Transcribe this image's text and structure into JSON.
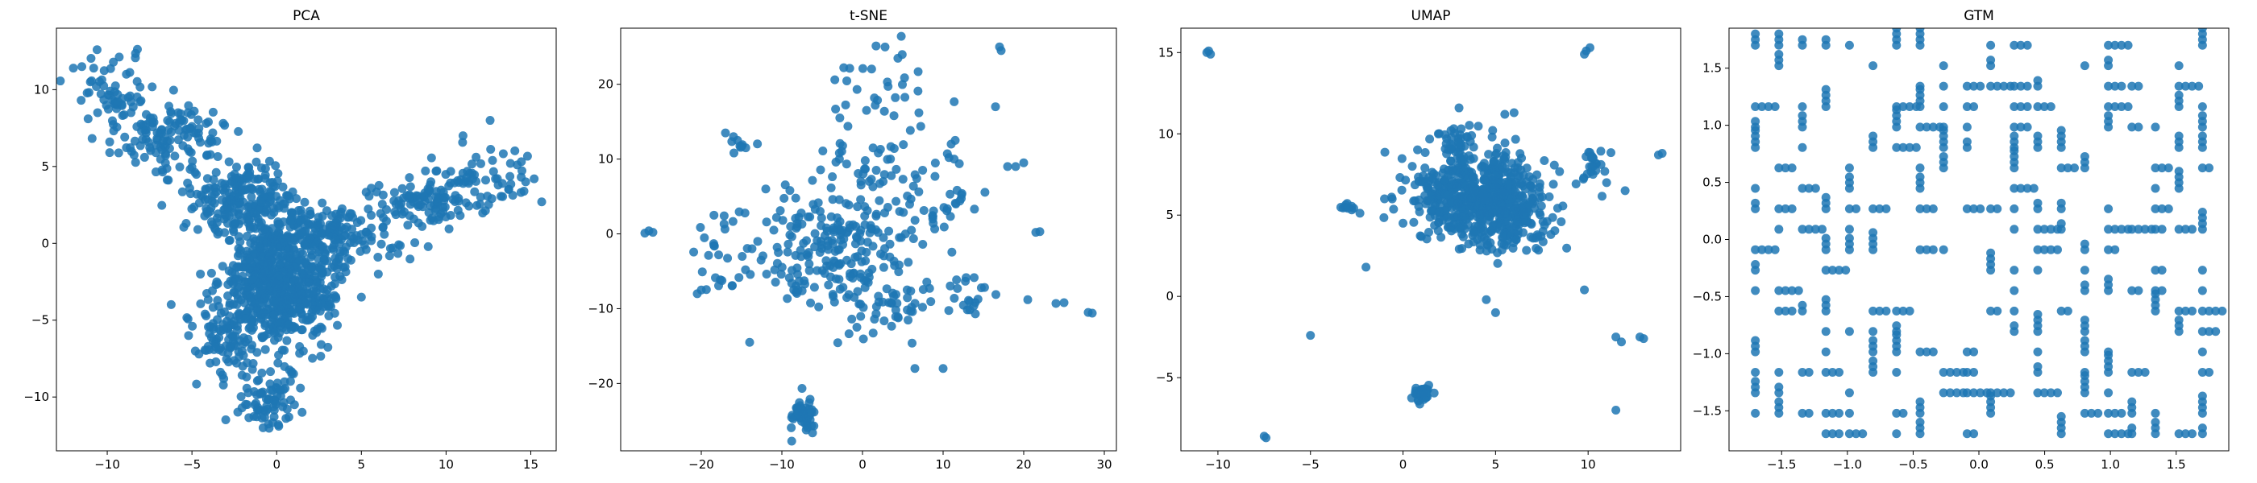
{
  "figure": {
    "background": "#ffffff",
    "marker_color": "#1f77b4",
    "marker_alpha": 0.85
  },
  "chart_data": [
    {
      "type": "scatter",
      "title": "PCA",
      "xlabel": "",
      "ylabel": "",
      "xlim": [
        -13,
        16.5
      ],
      "ylim": [
        -13.5,
        14
      ],
      "xticks": [
        -10,
        -5,
        0,
        5,
        10,
        15
      ],
      "yticks": [
        -10,
        -5,
        0,
        5,
        10
      ],
      "grid": false,
      "series": [
        {
          "color": "#1f77b4",
          "clusters": [
            {
              "cx": 0,
              "cy": -2.5,
              "sx": 1.6,
              "sy": 2.2,
              "n": 650
            },
            {
              "cx": -2,
              "cy": 3,
              "sx": 1.5,
              "sy": 1.2,
              "n": 200
            },
            {
              "cx": -6,
              "cy": 7,
              "sx": 1.5,
              "sy": 1.2,
              "n": 120
            },
            {
              "cx": -9.5,
              "cy": 9.5,
              "sx": 1.2,
              "sy": 1.2,
              "n": 60
            },
            {
              "cx": 3.5,
              "cy": 0.5,
              "sx": 1.8,
              "sy": 1.0,
              "n": 150
            },
            {
              "cx": 8.5,
              "cy": 3,
              "sx": 1.6,
              "sy": 1.0,
              "n": 110
            },
            {
              "cx": 13,
              "cy": 4,
              "sx": 1.4,
              "sy": 1.1,
              "n": 50
            },
            {
              "cx": -3,
              "cy": -6,
              "sx": 1.2,
              "sy": 1.2,
              "n": 80
            },
            {
              "cx": -0.5,
              "cy": -10.3,
              "sx": 0.8,
              "sy": 1.0,
              "n": 70
            },
            {
              "cx": 2.5,
              "cy": -3.5,
              "sx": 1.0,
              "sy": 1.0,
              "n": 40
            }
          ],
          "points": [
            [
              -11.5,
              11.5
            ],
            [
              -10.8,
              11.4
            ],
            [
              -10.6,
              12.6
            ],
            [
              -12.0,
              11.4
            ],
            [
              14.7,
              4.0
            ],
            [
              15.2,
              4.2
            ],
            [
              13.8,
              5.2
            ],
            [
              -0.8,
              -12.0
            ],
            [
              0.1,
              -11.8
            ],
            [
              1.5,
              -11.0
            ],
            [
              -2.0,
              -8.0
            ],
            [
              -5.2,
              -6.0
            ],
            [
              6.0,
              -2.0
            ],
            [
              5.0,
              -3.5
            ],
            [
              -4.5,
              -2.0
            ],
            [
              12.6,
              8.0
            ],
            [
              11.0,
              7.0
            ]
          ]
        }
      ]
    },
    {
      "type": "scatter",
      "title": "t-SNE",
      "xlabel": "",
      "ylabel": "",
      "xlim": [
        -30,
        31.5
      ],
      "ylim": [
        -29,
        27.5
      ],
      "xticks": [
        -20,
        -10,
        0,
        10,
        20,
        30
      ],
      "yticks": [
        -20,
        -10,
        0,
        10,
        20
      ],
      "grid": false,
      "series": [
        {
          "color": "#1f77b4",
          "clusters": [
            {
              "cx": -3,
              "cy": -2,
              "sx": 5,
              "sy": 4,
              "n": 180
            },
            {
              "cx": 3,
              "cy": 8,
              "sx": 5,
              "sy": 5,
              "n": 80
            },
            {
              "cx": 3,
              "cy": -9,
              "sx": 5,
              "sy": 3,
              "n": 70
            },
            {
              "cx": -7.5,
              "cy": -24.5,
              "sx": 0.8,
              "sy": 1.2,
              "n": 50
            },
            {
              "cx": 2.5,
              "cy": 20,
              "sx": 3,
              "sy": 3,
              "n": 25
            },
            {
              "cx": -18,
              "cy": -3,
              "sx": 2,
              "sy": 3,
              "n": 25
            },
            {
              "cx": -15,
              "cy": 12,
              "sx": 1,
              "sy": 0.8,
              "n": 8
            },
            {
              "cx": 10,
              "cy": 3,
              "sx": 1.5,
              "sy": 1.5,
              "n": 15
            },
            {
              "cx": 13,
              "cy": -8,
              "sx": 1.5,
              "sy": 1.5,
              "n": 12
            }
          ],
          "points": [
            [
              -26.5,
              0.4
            ],
            [
              -26.0,
              0.2
            ],
            [
              -27.0,
              0.1
            ],
            [
              17.0,
              25.0
            ],
            [
              17.2,
              24.5
            ],
            [
              28.0,
              -10.5
            ],
            [
              28.5,
              -10.6
            ],
            [
              24.0,
              -9.3
            ],
            [
              25.0,
              -9.2
            ],
            [
              22.0,
              0.3
            ],
            [
              21.5,
              0.2
            ],
            [
              20.0,
              9.5
            ],
            [
              19.0,
              9.0
            ],
            [
              18.0,
              9.0
            ],
            [
              16.5,
              17.0
            ],
            [
              20.5,
              -8.8
            ],
            [
              -14.0,
              -14.5
            ],
            [
              -20.5,
              -8.0
            ],
            [
              -20.0,
              -7.5
            ],
            [
              10.0,
              -18.0
            ],
            [
              6.5,
              -18.0
            ],
            [
              -12.0,
              6.0
            ],
            [
              -11.0,
              0.5
            ],
            [
              -13.0,
              -1.0
            ],
            [
              -17.0,
              13.5
            ],
            [
              -16.0,
              13.0
            ],
            [
              -15.5,
              12.5
            ],
            [
              11.0,
              12.0
            ],
            [
              11.5,
              12.5
            ]
          ]
        }
      ]
    },
    {
      "type": "scatter",
      "title": "UMAP",
      "xlabel": "",
      "ylabel": "",
      "xlim": [
        -12,
        15
      ],
      "ylim": [
        -9.5,
        16.5
      ],
      "xticks": [
        -10,
        -5,
        0,
        5,
        10
      ],
      "yticks": [
        -5,
        0,
        5,
        10,
        15
      ],
      "grid": false,
      "series": [
        {
          "color": "#1f77b4",
          "clusters": [
            {
              "cx": 4.5,
              "cy": 6,
              "sx": 1.4,
              "sy": 1.4,
              "n": 500
            },
            {
              "cx": 2,
              "cy": 6.5,
              "sx": 1.2,
              "sy": 1.2,
              "n": 120
            },
            {
              "cx": 6.5,
              "cy": 4,
              "sx": 1.0,
              "sy": 0.8,
              "n": 60
            },
            {
              "cx": 3,
              "cy": 9.5,
              "sx": 0.6,
              "sy": 0.8,
              "n": 40
            },
            {
              "cx": 10.3,
              "cy": 8,
              "sx": 0.4,
              "sy": 0.8,
              "n": 25
            },
            {
              "cx": 1.0,
              "cy": -5.9,
              "sx": 0.25,
              "sy": 0.25,
              "n": 40
            },
            {
              "cx": -3,
              "cy": 5.4,
              "sx": 0.3,
              "sy": 0.15,
              "n": 10
            }
          ],
          "points": [
            [
              -10.5,
              15.1
            ],
            [
              -10.6,
              15.0
            ],
            [
              -10.4,
              14.9
            ],
            [
              9.9,
              15.1
            ],
            [
              10.1,
              15.3
            ],
            [
              9.8,
              14.9
            ],
            [
              -7.5,
              -8.6
            ],
            [
              -7.4,
              -8.7
            ],
            [
              -5.0,
              -2.4
            ],
            [
              -2.0,
              1.8
            ],
            [
              14.0,
              8.8
            ],
            [
              13.8,
              8.7
            ],
            [
              12.8,
              -2.5
            ],
            [
              13.0,
              -2.6
            ],
            [
              11.5,
              -2.5
            ],
            [
              11.8,
              -2.8
            ],
            [
              11.5,
              -7.0
            ],
            [
              9.8,
              0.4
            ],
            [
              4.5,
              -0.2
            ],
            [
              5.0,
              -1.0
            ],
            [
              5.5,
              11.2
            ],
            [
              6.0,
              11.3
            ],
            [
              12.0,
              6.5
            ],
            [
              11.0,
              7.0
            ],
            [
              0.5,
              8.0
            ],
            [
              -1.0,
              6.0
            ],
            [
              0.0,
              4.5
            ]
          ]
        }
      ]
    },
    {
      "type": "scatter",
      "title": "GTM",
      "xlabel": "",
      "ylabel": "",
      "xlim": [
        -1.9,
        1.9
      ],
      "ylim": [
        -1.85,
        1.85
      ],
      "xticks": [
        -1.5,
        -1.0,
        -0.5,
        0.0,
        0.5,
        1.0,
        1.5
      ],
      "yticks": [
        -1.5,
        -1.0,
        -0.5,
        0.0,
        0.5,
        1.0,
        1.5
      ],
      "grid": false,
      "series": [
        {
          "color": "#1f77b4",
          "lattice": {
            "min": -1.7,
            "max": 1.7,
            "n": 20,
            "fill": 0.55,
            "max_stack": 4,
            "stack_step": 0.05
          }
        }
      ]
    }
  ]
}
